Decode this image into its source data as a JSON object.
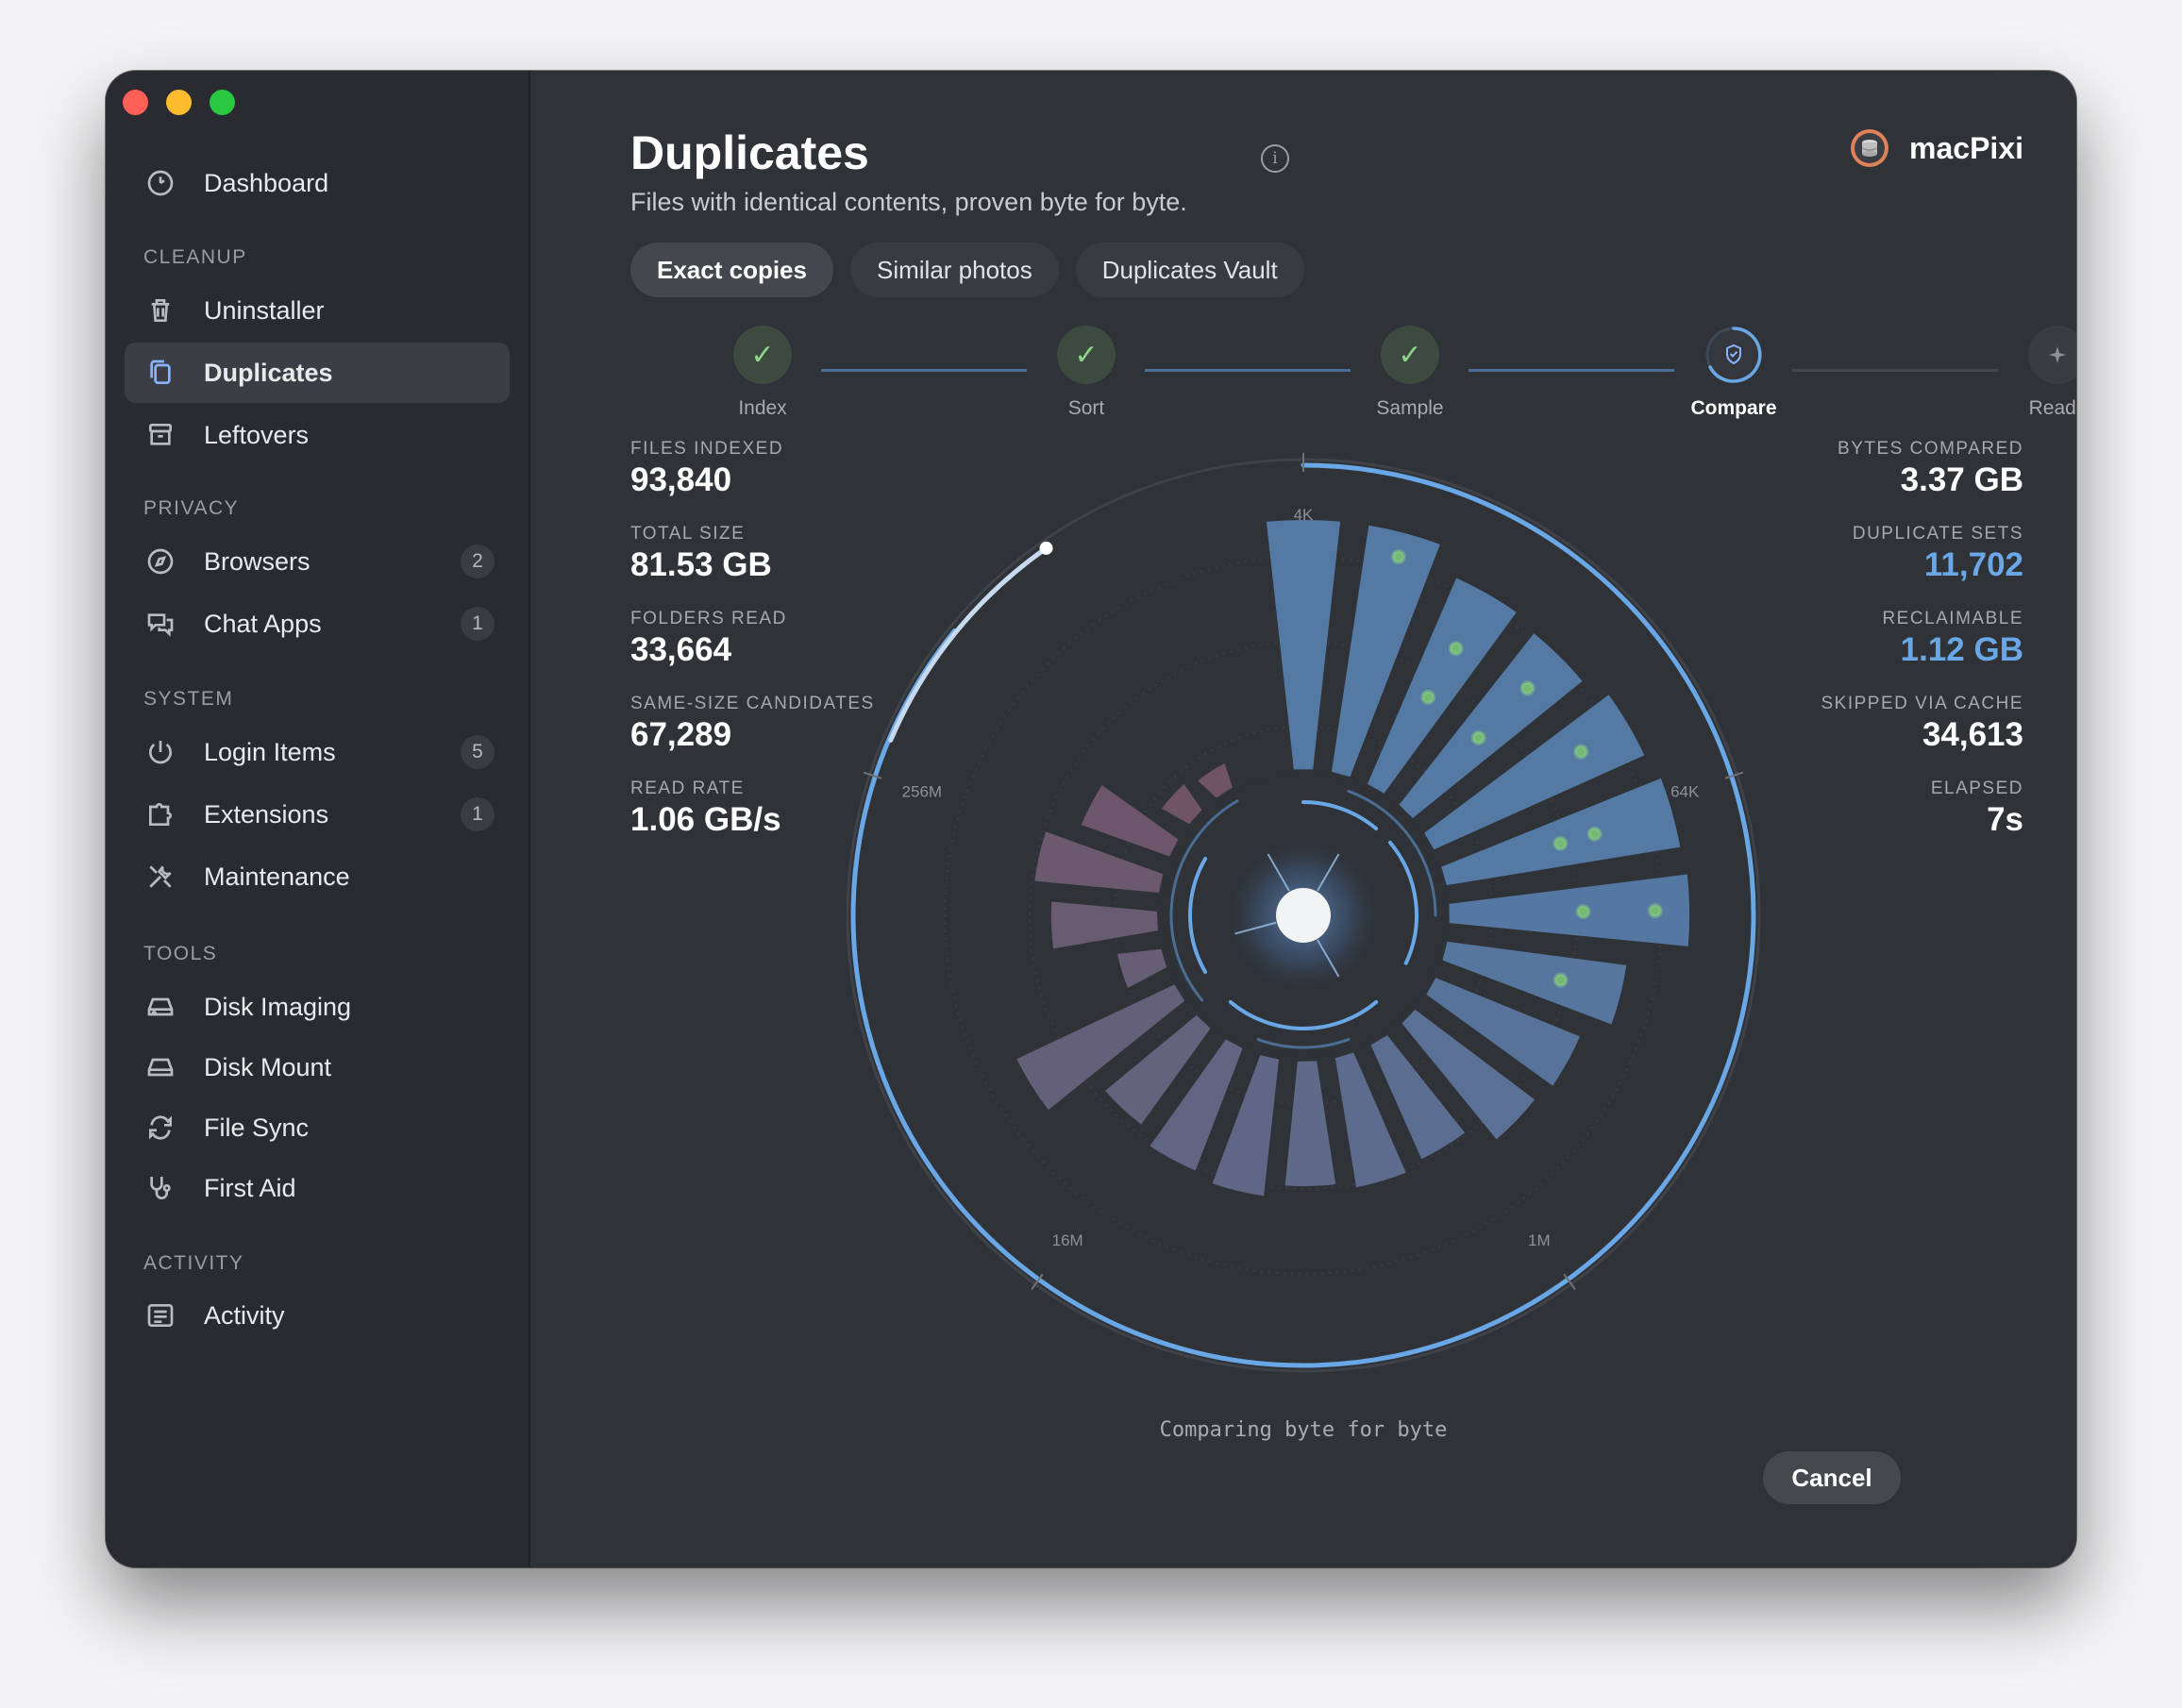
{
  "sidebar": {
    "top_item": {
      "label": "Dashboard",
      "icon": "gauge-icon"
    },
    "sections": {
      "cleanup": "CLEANUP",
      "privacy": "PRIVACY",
      "system": "SYSTEM",
      "tools": "TOOLS",
      "activity": "ACTIVITY"
    },
    "items": {
      "uninstaller": {
        "label": "Uninstaller",
        "icon": "trash-icon"
      },
      "duplicates": {
        "label": "Duplicates",
        "icon": "copy-icon"
      },
      "leftovers": {
        "label": "Leftovers",
        "icon": "archive-icon"
      },
      "browsers": {
        "label": "Browsers",
        "badge": "2",
        "icon": "compass-icon"
      },
      "chat_apps": {
        "label": "Chat Apps",
        "badge": "1",
        "icon": "chat-bubbles-icon"
      },
      "login_items": {
        "label": "Login Items",
        "badge": "5",
        "icon": "power-icon"
      },
      "extensions": {
        "label": "Extensions",
        "badge": "1",
        "icon": "puzzle-icon"
      },
      "maintenance": {
        "label": "Maintenance",
        "icon": "wrench-icon"
      },
      "disk_imaging": {
        "label": "Disk Imaging",
        "icon": "disk-icon"
      },
      "disk_mount": {
        "label": "Disk Mount",
        "icon": "drive-icon"
      },
      "file_sync": {
        "label": "File Sync",
        "icon": "sync-icon"
      },
      "first_aid": {
        "label": "First Aid",
        "icon": "stethoscope-icon"
      },
      "activity": {
        "label": "Activity",
        "icon": "list-icon"
      }
    }
  },
  "header": {
    "title": "Duplicates",
    "subtitle": "Files with identical contents, proven byte for byte.",
    "brand": "macPixi"
  },
  "tabs": [
    "Exact copies",
    "Similar photos",
    "Duplicates Vault"
  ],
  "steps": [
    {
      "label": "Index",
      "state": "done"
    },
    {
      "label": "Sort",
      "state": "done"
    },
    {
      "label": "Sample",
      "state": "done"
    },
    {
      "label": "Compare",
      "state": "current"
    },
    {
      "label": "Ready",
      "state": "pending"
    }
  ],
  "stats_left": [
    {
      "label": "FILES INDEXED",
      "value": "93,840"
    },
    {
      "label": "TOTAL SIZE",
      "value": "81.53 GB"
    },
    {
      "label": "FOLDERS READ",
      "value": "33,664"
    },
    {
      "label": "SAME-SIZE CANDIDATES",
      "value": "67,289"
    },
    {
      "label": "READ RATE",
      "value": "1.06 GB/s"
    }
  ],
  "stats_right": [
    {
      "label": "BYTES COMPARED",
      "value": "3.37 GB"
    },
    {
      "label": "DUPLICATE SETS",
      "value": "11,702"
    },
    {
      "label": "RECLAIMABLE",
      "value": "1.12 GB"
    },
    {
      "label": "SKIPPED VIA CACHE",
      "value": "34,613"
    },
    {
      "label": "ELAPSED",
      "value": "7s"
    }
  ],
  "radial": {
    "size_labels": [
      "4K",
      "64K",
      "1M",
      "16M",
      "256M"
    ],
    "bar_levels": [
      0.8,
      0.8,
      0.72,
      0.7,
      0.74,
      0.76,
      0.77,
      0.58,
      0.5,
      0.48,
      0.4,
      0.42,
      0.4,
      0.44,
      0.42,
      0.38,
      0.56,
      0.14,
      0.34,
      0.4,
      0.3,
      0.1,
      0.08
    ],
    "progress": 0.97,
    "colors": {
      "accent": "#6aa7e6",
      "bar_blue": "#5a86b6",
      "bar_mauve": "#7a5a6e"
    }
  },
  "status": "Comparing byte for byte",
  "cancel_label": "Cancel"
}
